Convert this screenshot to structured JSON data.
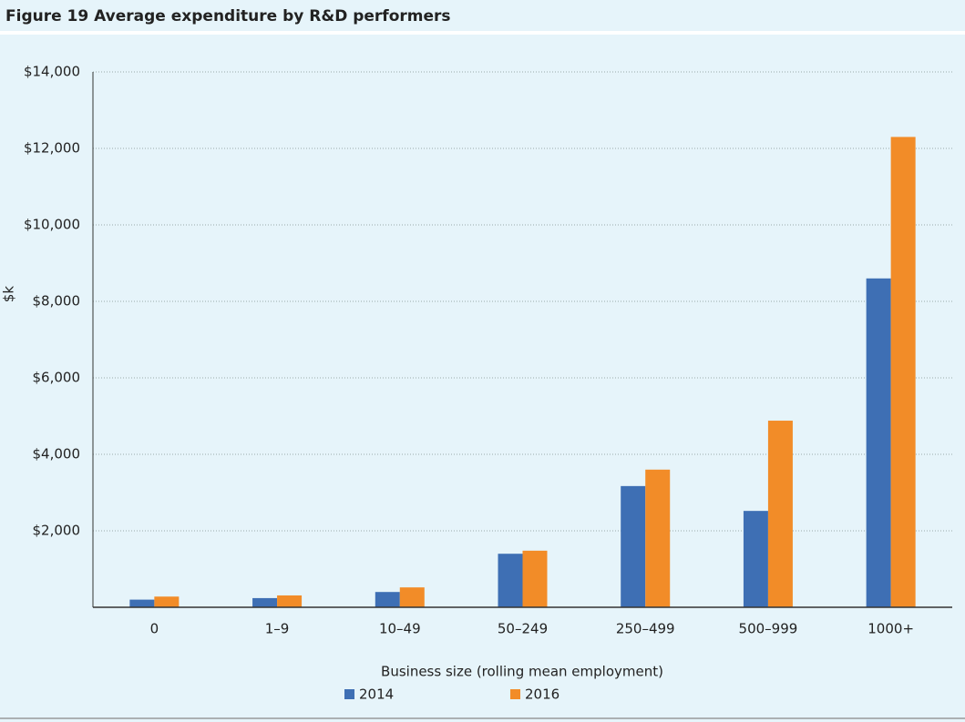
{
  "chart_data": {
    "type": "bar",
    "figure_label": "Figure 19",
    "title": "Average expenditure by R&D performers",
    "y_label": "$k",
    "x_label": "Business size (rolling mean employment)",
    "categories": [
      "0",
      "1–9",
      "10–49",
      "50–249",
      "250–499",
      "500–999",
      "1000+"
    ],
    "series": [
      {
        "name": "2014",
        "color": "#3e6fb4",
        "values": [
          200,
          240,
          400,
          1400,
          3170,
          2520,
          8600
        ]
      },
      {
        "name": "2016",
        "color": "#f28c28",
        "values": [
          280,
          310,
          520,
          1480,
          3600,
          4880,
          12300
        ]
      }
    ],
    "ylim": [
      0,
      14000
    ],
    "yticks": [
      {
        "value": 2000,
        "label": "$2,000"
      },
      {
        "value": 4000,
        "label": "$4,000"
      },
      {
        "value": 6000,
        "label": "$6,000"
      },
      {
        "value": 8000,
        "label": "$8,000"
      },
      {
        "value": 10000,
        "label": "$10,000"
      },
      {
        "value": 12000,
        "label": "$12,000"
      },
      {
        "value": 14000,
        "label": "$14,000"
      }
    ],
    "grid": true,
    "legend": "bottom"
  }
}
